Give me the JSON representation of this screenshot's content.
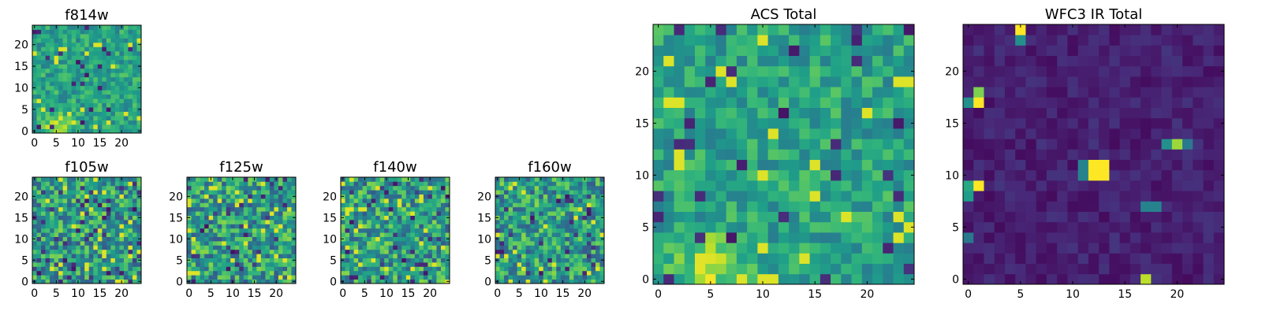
{
  "chart_data": [
    {
      "type": "heatmap",
      "title": "f814w",
      "xticks": [
        "0",
        "5",
        "10",
        "15",
        "20"
      ],
      "yticks": [
        "0",
        "5",
        "10",
        "15",
        "20"
      ],
      "xlim": [
        -0.5,
        24.5
      ],
      "ylim": [
        -0.5,
        24.5
      ],
      "grid": false,
      "colormap": "viridis",
      "seed": 11,
      "pattern": "acs"
    },
    {
      "type": "heatmap",
      "title": "f105w",
      "xticks": [
        "0",
        "5",
        "10",
        "15",
        "20"
      ],
      "yticks": [
        "0",
        "5",
        "10",
        "15",
        "20"
      ],
      "xlim": [
        -0.5,
        24.5
      ],
      "ylim": [
        -0.5,
        24.5
      ],
      "grid": false,
      "colormap": "viridis",
      "seed": 23,
      "pattern": "noise"
    },
    {
      "type": "heatmap",
      "title": "f125w",
      "xticks": [
        "0",
        "5",
        "10",
        "15",
        "20"
      ],
      "yticks": [
        "0",
        "5",
        "10",
        "15",
        "20"
      ],
      "xlim": [
        -0.5,
        24.5
      ],
      "ylim": [
        -0.5,
        24.5
      ],
      "grid": false,
      "colormap": "viridis",
      "seed": 37,
      "pattern": "noise"
    },
    {
      "type": "heatmap",
      "title": "f140w",
      "xticks": [
        "0",
        "5",
        "10",
        "15",
        "20"
      ],
      "yticks": [
        "0",
        "5",
        "10",
        "15",
        "20"
      ],
      "xlim": [
        -0.5,
        24.5
      ],
      "ylim": [
        -0.5,
        24.5
      ],
      "grid": false,
      "colormap": "viridis",
      "seed": 41,
      "pattern": "noise"
    },
    {
      "type": "heatmap",
      "title": "f160w",
      "xticks": [
        "0",
        "5",
        "10",
        "15",
        "20"
      ],
      "yticks": [
        "0",
        "5",
        "10",
        "15",
        "20"
      ],
      "xlim": [
        -0.5,
        24.5
      ],
      "ylim": [
        -0.5,
        24.5
      ],
      "grid": false,
      "colormap": "viridis",
      "seed": 53,
      "pattern": "noise"
    },
    {
      "type": "heatmap",
      "title": "ACS Total",
      "xticks": [
        "0",
        "5",
        "10",
        "15",
        "20"
      ],
      "yticks": [
        "0",
        "5",
        "10",
        "15",
        "20"
      ],
      "xlim": [
        -0.5,
        24.5
      ],
      "ylim": [
        -0.5,
        24.5
      ],
      "grid": false,
      "colormap": "viridis",
      "seed": 67,
      "pattern": "acs"
    },
    {
      "type": "heatmap",
      "title": "WFC3 IR Total",
      "xticks": [
        "0",
        "5",
        "10",
        "15",
        "20"
      ],
      "yticks": [
        "0",
        "5",
        "10",
        "15",
        "20"
      ],
      "xlim": [
        -0.5,
        24.5
      ],
      "ylim": [
        -0.5,
        24.5
      ],
      "grid": false,
      "colormap": "viridis",
      "seed": 79,
      "pattern": "ir",
      "bright_pixels": [
        {
          "x": 12,
          "y": 11,
          "v": 1.0
        },
        {
          "x": 13,
          "y": 11,
          "v": 1.0
        },
        {
          "x": 12,
          "y": 10,
          "v": 1.0
        },
        {
          "x": 13,
          "y": 10,
          "v": 1.0
        },
        {
          "x": 11,
          "y": 11,
          "v": 0.45
        },
        {
          "x": 11,
          "y": 10,
          "v": 0.45
        },
        {
          "x": 1,
          "y": 17,
          "v": 1.0
        },
        {
          "x": 1,
          "y": 18,
          "v": 0.8
        },
        {
          "x": 0,
          "y": 17,
          "v": 0.5
        },
        {
          "x": 1,
          "y": 9,
          "v": 1.0
        },
        {
          "x": 0,
          "y": 9,
          "v": 0.6
        },
        {
          "x": 0,
          "y": 8,
          "v": 0.55
        },
        {
          "x": 5,
          "y": 24,
          "v": 1.0
        },
        {
          "x": 5,
          "y": 23,
          "v": 0.5
        },
        {
          "x": 17,
          "y": 0,
          "v": 0.9
        },
        {
          "x": 20,
          "y": 13,
          "v": 0.85
        },
        {
          "x": 19,
          "y": 13,
          "v": 0.5
        },
        {
          "x": 21,
          "y": 13,
          "v": 0.4
        },
        {
          "x": 18,
          "y": 7,
          "v": 0.45
        },
        {
          "x": 17,
          "y": 7,
          "v": 0.45
        },
        {
          "x": 0,
          "y": 4,
          "v": 0.4
        }
      ]
    }
  ]
}
